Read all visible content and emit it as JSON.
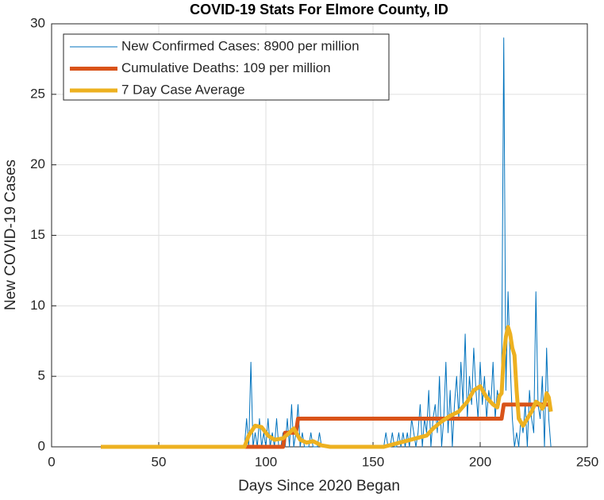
{
  "chart_data": {
    "type": "line",
    "title": "COVID-19 Stats For Elmore County, ID",
    "xlabel": "Days Since 2020 Began",
    "ylabel": "New COVID-19 Cases",
    "xlim": [
      0,
      250
    ],
    "xticks": [
      0,
      50,
      100,
      150,
      200,
      250
    ],
    "ylim": [
      0,
      30
    ],
    "yticks": [
      0,
      5,
      10,
      15,
      20,
      25,
      30
    ],
    "grid": true,
    "legend": "upper-left",
    "series": [
      {
        "name": "New Confirmed Cases: 8900 per million",
        "color": "#0072bd",
        "width": 1,
        "x": [
          23,
          89,
          90,
          91,
          92,
          93,
          94,
          95,
          96,
          97,
          98,
          99,
          100,
          101,
          102,
          103,
          104,
          105,
          106,
          107,
          108,
          109,
          110,
          111,
          112,
          113,
          114,
          115,
          116,
          117,
          118,
          119,
          120,
          121,
          122,
          123,
          124,
          125,
          126,
          127,
          128,
          129,
          130,
          131,
          132,
          133,
          134,
          135,
          136,
          137,
          138,
          139,
          140,
          141,
          142,
          143,
          144,
          145,
          146,
          147,
          148,
          149,
          150,
          151,
          152,
          153,
          154,
          155,
          156,
          157,
          158,
          159,
          160,
          161,
          162,
          163,
          164,
          165,
          166,
          167,
          168,
          169,
          170,
          171,
          172,
          173,
          174,
          175,
          176,
          177,
          178,
          179,
          180,
          181,
          182,
          183,
          184,
          185,
          186,
          187,
          188,
          189,
          190,
          191,
          192,
          193,
          194,
          195,
          196,
          197,
          198,
          199,
          200,
          201,
          202,
          203,
          204,
          205,
          206,
          207,
          208,
          209,
          210,
          211,
          212,
          213,
          214,
          215,
          216,
          217,
          218,
          219,
          220,
          221,
          222,
          223,
          224,
          225,
          226,
          227,
          228,
          229,
          230,
          231,
          232,
          233
        ],
        "values": [
          0,
          0,
          0,
          2,
          0,
          6,
          0,
          1,
          0,
          2,
          0,
          1,
          0,
          2,
          0,
          1,
          0,
          2,
          0,
          0,
          1,
          0,
          2,
          0,
          3,
          0,
          1,
          3,
          0,
          1,
          0,
          0,
          0,
          1,
          0,
          0,
          0,
          1,
          0,
          0,
          0,
          0,
          0,
          0,
          0,
          0,
          0,
          0,
          0,
          0,
          0,
          0,
          0,
          0,
          0,
          0,
          0,
          0,
          0,
          0,
          0,
          0,
          0,
          0,
          0,
          0,
          0,
          0,
          1,
          0,
          0,
          1,
          0,
          0,
          1,
          0,
          1,
          0,
          1,
          0,
          2,
          1,
          0,
          1,
          3,
          0,
          2,
          1,
          4,
          0,
          2,
          3,
          1,
          5,
          0,
          2,
          6,
          1,
          4,
          0,
          3,
          5,
          2,
          6,
          3,
          8,
          2,
          5,
          3,
          7,
          4,
          2,
          6,
          3,
          5,
          2,
          4,
          3,
          6,
          2,
          4,
          3,
          5,
          29,
          4,
          11,
          6,
          2,
          0,
          1,
          0,
          2,
          1,
          3,
          0,
          4,
          2,
          1,
          11,
          3,
          2,
          5,
          0,
          7,
          2,
          0
        ]
      },
      {
        "name": "Cumulative Deaths: 109 per million",
        "color": "#d95319",
        "width": 5,
        "x": [
          23,
          108,
          109,
          114,
          115,
          210,
          211,
          233
        ],
        "values": [
          0,
          0,
          1,
          1,
          2,
          2,
          3,
          3
        ]
      },
      {
        "name": "7 Day Case Average",
        "color": "#edb120",
        "width": 5,
        "x": [
          23,
          90,
          92,
          95,
          98,
          101,
          104,
          108,
          111,
          113,
          116,
          119,
          122,
          126,
          130,
          134,
          155,
          160,
          165,
          170,
          175,
          178,
          182,
          186,
          190,
          194,
          197,
          200,
          203,
          206,
          208,
          209,
          210,
          211,
          212,
          213,
          214,
          215,
          216,
          217,
          218,
          220,
          222,
          224,
          226,
          228,
          229,
          230,
          231,
          232,
          233
        ],
        "values": [
          0,
          0,
          0.8,
          1.5,
          1.4,
          0.8,
          0.5,
          0.6,
          1,
          1.3,
          0.5,
          0.3,
          0.4,
          0.1,
          0,
          0,
          0,
          0.2,
          0.4,
          0.6,
          0.8,
          1.3,
          1.8,
          2.2,
          2.5,
          3.2,
          4,
          4.3,
          3.5,
          3,
          2.8,
          3.6,
          3.8,
          6.5,
          7.8,
          8.5,
          8,
          7,
          6.5,
          4,
          2,
          1.5,
          2,
          2.5,
          3.2,
          3,
          2.7,
          3,
          3.8,
          3.5,
          2.5
        ]
      }
    ]
  }
}
